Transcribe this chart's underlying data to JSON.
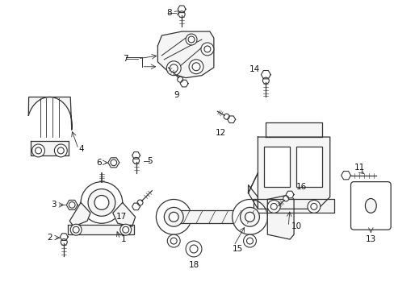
{
  "background_color": "#ffffff",
  "line_color": "#333333",
  "fill_color": "#f5f5f5",
  "label_fontsize": 7.5,
  "lw": 0.9
}
